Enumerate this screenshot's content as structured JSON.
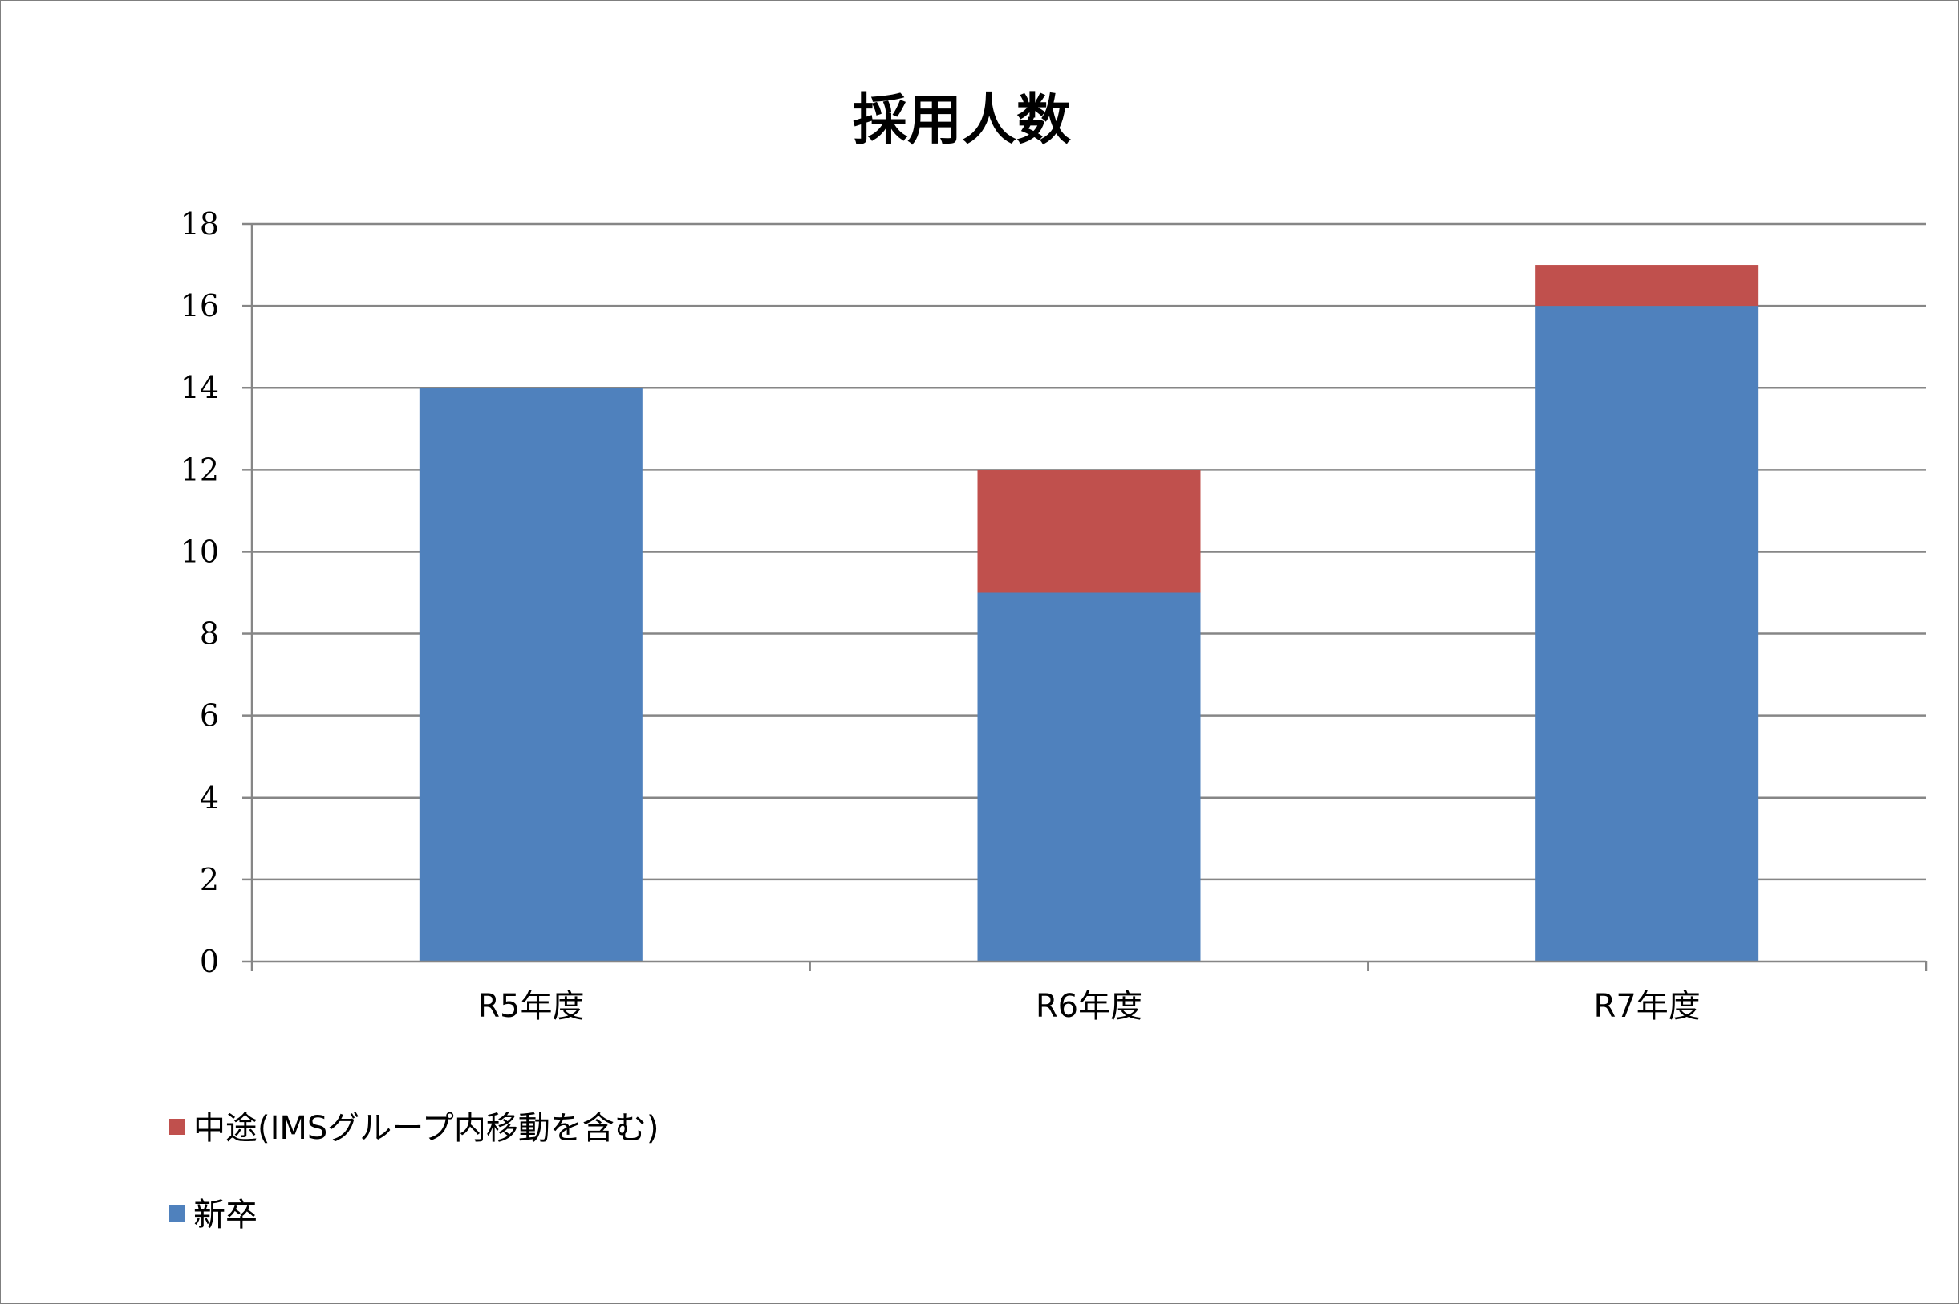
{
  "chart_data": {
    "type": "bar",
    "stacked": true,
    "title": "採用人数",
    "categories": [
      "R5年度",
      "R6年度",
      "R7年度"
    ],
    "series": [
      {
        "name": "新卒",
        "values": [
          14,
          9,
          16
        ],
        "color": "#4F81BD"
      },
      {
        "name": "中途(IMSグループ内移動を含む)",
        "values": [
          0,
          3,
          1
        ],
        "color": "#C0504D"
      }
    ],
    "yticks": [
      0,
      2,
      4,
      6,
      8,
      10,
      12,
      14,
      16,
      18
    ],
    "ylim": [
      0,
      18
    ],
    "grid": true,
    "legend_position": "bottom-left",
    "legend_order": [
      "中途(IMSグループ内移動を含む)",
      "新卒"
    ]
  }
}
